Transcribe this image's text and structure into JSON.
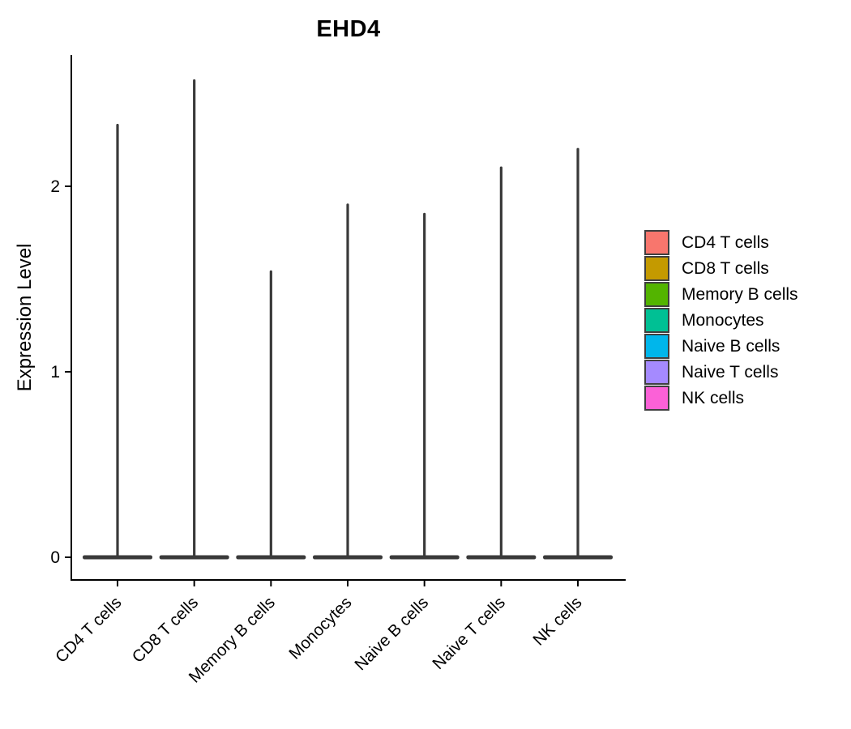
{
  "chart_data": {
    "type": "violin",
    "title": "EHD4",
    "ylabel": "Expression Level",
    "xlabel": "",
    "yticks": [
      0,
      1,
      2
    ],
    "ylim": [
      -0.12,
      2.83
    ],
    "grid": "off",
    "legend_position": "right",
    "axis_color": "#000000",
    "violin_outline_color": "#3A3A3A",
    "categories": [
      "CD4 T cells",
      "CD8 T cells",
      "Memory B cells",
      "Monocytes",
      "Naive B cells",
      "Naive T cells",
      "NK cells"
    ],
    "series": [
      {
        "name": "CD4 T cells",
        "color": "#F8766D",
        "max_expression": 2.33,
        "bulk_expression": 0
      },
      {
        "name": "CD8 T cells",
        "color": "#C49A00",
        "max_expression": 2.57,
        "bulk_expression": 0
      },
      {
        "name": "Memory B cells",
        "color": "#53B400",
        "max_expression": 1.54,
        "bulk_expression": 0
      },
      {
        "name": "Monocytes",
        "color": "#00C094",
        "max_expression": 1.9,
        "bulk_expression": 0
      },
      {
        "name": "Naive B cells",
        "color": "#00B6EB",
        "max_expression": 1.85,
        "bulk_expression": 0
      },
      {
        "name": "Naive T cells",
        "color": "#A58AFF",
        "max_expression": 2.1,
        "bulk_expression": 0
      },
      {
        "name": "NK cells",
        "color": "#FB61D7",
        "max_expression": 2.2,
        "bulk_expression": 0
      }
    ],
    "shape_note": "each violin is a flat dense mass at 0 with a thin vertical tail up to max_expression"
  }
}
